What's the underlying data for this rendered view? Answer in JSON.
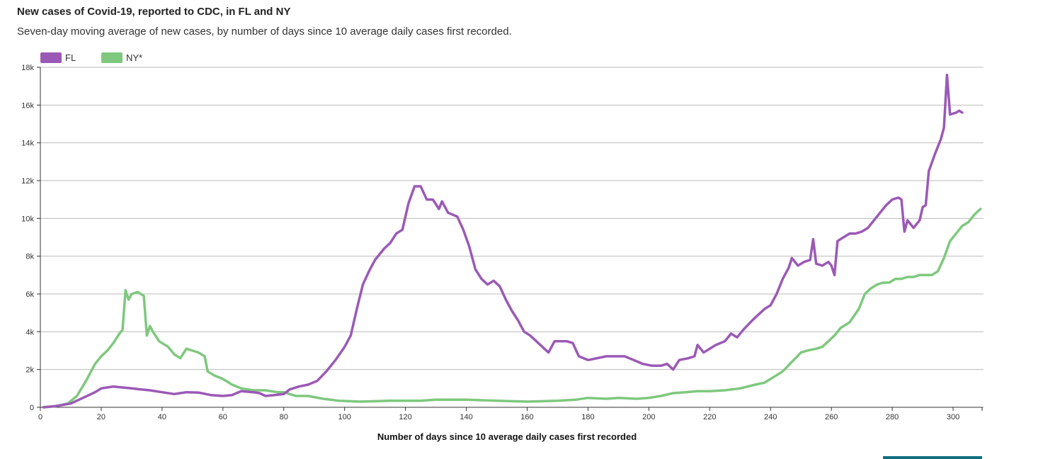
{
  "title": "New cases of Covid-19, reported to CDC, in FL and NY",
  "subtitle": "Seven-day moving average of new cases, by number of days since 10 average daily cases first recorded.",
  "accent_bar_color": "#0f6f7f",
  "chart_data": {
    "type": "line",
    "title": "New cases of Covid-19, reported to CDC, in FL and NY",
    "xlabel": "Number of days since 10 average daily cases first recorded",
    "ylabel": "",
    "xlim": [
      0,
      310
    ],
    "ylim": [
      0,
      18000
    ],
    "xticks": [
      0,
      20,
      40,
      60,
      80,
      100,
      120,
      140,
      160,
      180,
      200,
      220,
      240,
      260,
      280,
      300
    ],
    "yticks": [
      0,
      2000,
      4000,
      6000,
      8000,
      10000,
      12000,
      14000,
      16000,
      18000
    ],
    "ytick_labels": [
      "0",
      "2k",
      "4k",
      "6k",
      "8k",
      "10k",
      "12k",
      "14k",
      "16k",
      "18k"
    ],
    "grid": true,
    "legend": "top-left",
    "series": [
      {
        "name": "FL",
        "color": "#9b59b6",
        "points": [
          [
            1,
            0
          ],
          [
            5,
            60
          ],
          [
            10,
            200
          ],
          [
            14,
            500
          ],
          [
            18,
            800
          ],
          [
            20,
            1000
          ],
          [
            22,
            1050
          ],
          [
            24,
            1100
          ],
          [
            27,
            1050
          ],
          [
            30,
            1000
          ],
          [
            33,
            950
          ],
          [
            36,
            900
          ],
          [
            40,
            800
          ],
          [
            44,
            700
          ],
          [
            48,
            800
          ],
          [
            52,
            780
          ],
          [
            56,
            650
          ],
          [
            60,
            600
          ],
          [
            63,
            650
          ],
          [
            66,
            850
          ],
          [
            70,
            800
          ],
          [
            72,
            750
          ],
          [
            74,
            600
          ],
          [
            77,
            650
          ],
          [
            80,
            700
          ],
          [
            82,
            950
          ],
          [
            85,
            1100
          ],
          [
            88,
            1200
          ],
          [
            91,
            1400
          ],
          [
            94,
            1900
          ],
          [
            97,
            2500
          ],
          [
            100,
            3200
          ],
          [
            102,
            3800
          ],
          [
            104,
            5200
          ],
          [
            106,
            6500
          ],
          [
            108,
            7200
          ],
          [
            110,
            7800
          ],
          [
            113,
            8400
          ],
          [
            115,
            8700
          ],
          [
            117,
            9200
          ],
          [
            119,
            9400
          ],
          [
            121,
            10800
          ],
          [
            123,
            11700
          ],
          [
            125,
            11700
          ],
          [
            127,
            11000
          ],
          [
            129,
            11000
          ],
          [
            131,
            10500
          ],
          [
            132,
            10900
          ],
          [
            134,
            10300
          ],
          [
            137,
            10100
          ],
          [
            139,
            9400
          ],
          [
            141,
            8500
          ],
          [
            143,
            7300
          ],
          [
            145,
            6800
          ],
          [
            147,
            6500
          ],
          [
            149,
            6700
          ],
          [
            151,
            6400
          ],
          [
            153,
            5700
          ],
          [
            155,
            5100
          ],
          [
            157,
            4600
          ],
          [
            159,
            4000
          ],
          [
            161,
            3800
          ],
          [
            163,
            3500
          ],
          [
            165,
            3200
          ],
          [
            167,
            2900
          ],
          [
            169,
            3500
          ],
          [
            171,
            3500
          ],
          [
            173,
            3500
          ],
          [
            175,
            3400
          ],
          [
            177,
            2700
          ],
          [
            180,
            2500
          ],
          [
            183,
            2600
          ],
          [
            186,
            2700
          ],
          [
            189,
            2700
          ],
          [
            192,
            2700
          ],
          [
            195,
            2500
          ],
          [
            198,
            2300
          ],
          [
            201,
            2200
          ],
          [
            204,
            2200
          ],
          [
            206,
            2300
          ],
          [
            208,
            2000
          ],
          [
            210,
            2500
          ],
          [
            213,
            2600
          ],
          [
            215,
            2700
          ],
          [
            216,
            3300
          ],
          [
            218,
            2900
          ],
          [
            220,
            3100
          ],
          [
            222,
            3300
          ],
          [
            225,
            3500
          ],
          [
            227,
            3900
          ],
          [
            229,
            3700
          ],
          [
            231,
            4100
          ],
          [
            234,
            4600
          ],
          [
            236,
            4900
          ],
          [
            238,
            5200
          ],
          [
            240,
            5400
          ],
          [
            242,
            6000
          ],
          [
            244,
            6800
          ],
          [
            246,
            7400
          ],
          [
            247,
            7900
          ],
          [
            249,
            7500
          ],
          [
            251,
            7700
          ],
          [
            253,
            7800
          ],
          [
            254,
            8900
          ],
          [
            255,
            7600
          ],
          [
            257,
            7500
          ],
          [
            259,
            7700
          ],
          [
            260,
            7500
          ],
          [
            261,
            7000
          ],
          [
            262,
            8800
          ],
          [
            264,
            9000
          ],
          [
            266,
            9200
          ],
          [
            268,
            9200
          ],
          [
            270,
            9300
          ],
          [
            272,
            9500
          ],
          [
            274,
            9900
          ],
          [
            276,
            10300
          ],
          [
            278,
            10700
          ],
          [
            280,
            11000
          ],
          [
            282,
            11100
          ],
          [
            283,
            11000
          ],
          [
            284,
            9300
          ],
          [
            285,
            9900
          ],
          [
            287,
            9500
          ],
          [
            289,
            9900
          ],
          [
            290,
            10600
          ],
          [
            291,
            10700
          ],
          [
            292,
            12500
          ],
          [
            294,
            13400
          ],
          [
            296,
            14200
          ],
          [
            297,
            14800
          ],
          [
            298,
            17600
          ],
          [
            299,
            15500
          ],
          [
            301,
            15600
          ],
          [
            302,
            15700
          ],
          [
            303,
            15600
          ]
        ]
      },
      {
        "name": "NY*",
        "color": "#7ec87e",
        "points": [
          [
            1,
            0
          ],
          [
            5,
            60
          ],
          [
            9,
            200
          ],
          [
            12,
            600
          ],
          [
            15,
            1400
          ],
          [
            18,
            2300
          ],
          [
            20,
            2700
          ],
          [
            22,
            3000
          ],
          [
            24,
            3400
          ],
          [
            26,
            3900
          ],
          [
            27,
            4100
          ],
          [
            28,
            6200
          ],
          [
            29,
            5700
          ],
          [
            30,
            6000
          ],
          [
            32,
            6100
          ],
          [
            34,
            5900
          ],
          [
            35,
            3800
          ],
          [
            36,
            4300
          ],
          [
            37,
            4000
          ],
          [
            39,
            3500
          ],
          [
            42,
            3200
          ],
          [
            44,
            2800
          ],
          [
            46,
            2600
          ],
          [
            48,
            3100
          ],
          [
            50,
            3000
          ],
          [
            52,
            2900
          ],
          [
            54,
            2700
          ],
          [
            55,
            1900
          ],
          [
            57,
            1700
          ],
          [
            60,
            1500
          ],
          [
            63,
            1200
          ],
          [
            66,
            1000
          ],
          [
            70,
            900
          ],
          [
            74,
            900
          ],
          [
            78,
            800
          ],
          [
            80,
            800
          ],
          [
            84,
            600
          ],
          [
            88,
            600
          ],
          [
            93,
            450
          ],
          [
            98,
            350
          ],
          [
            105,
            300
          ],
          [
            115,
            350
          ],
          [
            125,
            350
          ],
          [
            130,
            400
          ],
          [
            140,
            400
          ],
          [
            150,
            350
          ],
          [
            160,
            300
          ],
          [
            170,
            350
          ],
          [
            176,
            400
          ],
          [
            180,
            500
          ],
          [
            186,
            450
          ],
          [
            190,
            500
          ],
          [
            196,
            450
          ],
          [
            200,
            500
          ],
          [
            204,
            600
          ],
          [
            208,
            750
          ],
          [
            212,
            800
          ],
          [
            216,
            850
          ],
          [
            220,
            850
          ],
          [
            225,
            900
          ],
          [
            230,
            1000
          ],
          [
            235,
            1200
          ],
          [
            238,
            1300
          ],
          [
            240,
            1500
          ],
          [
            244,
            1900
          ],
          [
            247,
            2400
          ],
          [
            250,
            2900
          ],
          [
            252,
            3000
          ],
          [
            255,
            3100
          ],
          [
            257,
            3200
          ],
          [
            259,
            3500
          ],
          [
            261,
            3800
          ],
          [
            263,
            4200
          ],
          [
            266,
            4500
          ],
          [
            269,
            5200
          ],
          [
            271,
            6000
          ],
          [
            273,
            6300
          ],
          [
            275,
            6500
          ],
          [
            277,
            6600
          ],
          [
            279,
            6600
          ],
          [
            281,
            6800
          ],
          [
            283,
            6800
          ],
          [
            285,
            6900
          ],
          [
            287,
            6900
          ],
          [
            289,
            7000
          ],
          [
            291,
            7000
          ],
          [
            293,
            7000
          ],
          [
            295,
            7200
          ],
          [
            297,
            7900
          ],
          [
            299,
            8800
          ],
          [
            301,
            9200
          ],
          [
            303,
            9600
          ],
          [
            305,
            9800
          ],
          [
            307,
            10200
          ],
          [
            309,
            10500
          ]
        ]
      }
    ]
  }
}
